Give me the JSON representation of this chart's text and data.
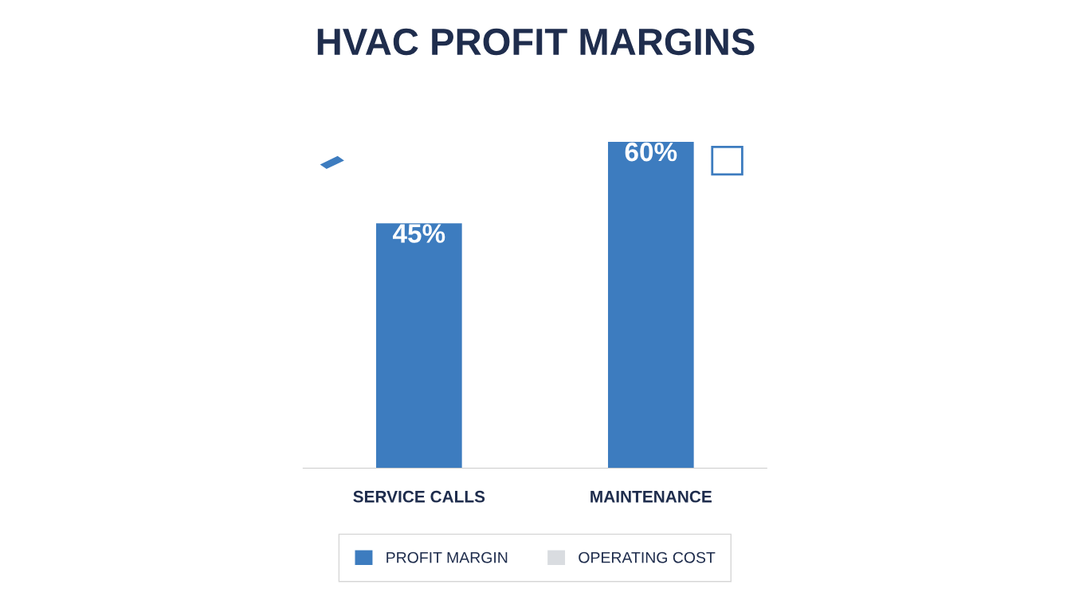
{
  "chart_data": {
    "type": "bar",
    "title": "HVAC PROFIT MARGINS",
    "categories": [
      "SERVICE CALLS",
      "MAINTENANCE"
    ],
    "series": [
      {
        "name": "PROFIT MARGIN",
        "color": "#3d7cbf",
        "values": [
          45,
          60
        ],
        "value_labels": [
          "45%",
          "60%"
        ]
      },
      {
        "name": "OPERATING COST",
        "color": "#d9dce0",
        "values": [
          null,
          null
        ]
      }
    ],
    "legend": "bottom",
    "grid": false,
    "tick_labels": "x"
  }
}
